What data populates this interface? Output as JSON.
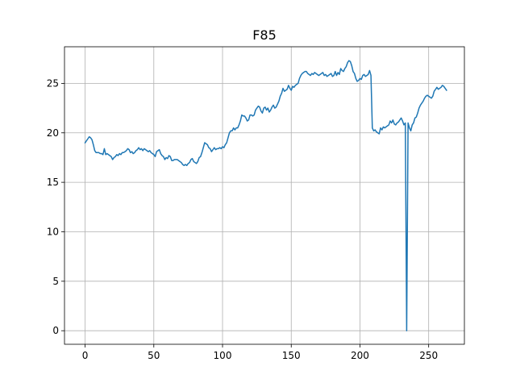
{
  "chart_data": {
    "type": "line",
    "title": "F85",
    "xlabel": "",
    "ylabel": "",
    "xlim": [
      -15,
      276
    ],
    "ylim": [
      -1.37,
      28.7
    ],
    "xticks": [
      0,
      50,
      100,
      150,
      200,
      250
    ],
    "yticks": [
      0,
      5,
      10,
      15,
      20,
      25
    ],
    "grid": true,
    "series": [
      {
        "color": "#1f77b4",
        "points": [
          [
            0,
            19.0
          ],
          [
            1,
            19.2
          ],
          [
            2,
            19.4
          ],
          [
            3,
            19.6
          ],
          [
            4,
            19.5
          ],
          [
            5,
            19.3
          ],
          [
            6,
            18.8
          ],
          [
            7,
            18.2
          ],
          [
            8,
            18.0
          ],
          [
            9,
            18.0
          ],
          [
            10,
            18.0
          ],
          [
            11,
            17.9
          ],
          [
            12,
            17.9
          ],
          [
            13,
            17.8
          ],
          [
            14,
            18.4
          ],
          [
            15,
            17.8
          ],
          [
            16,
            17.9
          ],
          [
            17,
            17.8
          ],
          [
            18,
            17.7
          ],
          [
            19,
            17.6
          ],
          [
            20,
            17.3
          ],
          [
            21,
            17.5
          ],
          [
            22,
            17.6
          ],
          [
            23,
            17.8
          ],
          [
            24,
            17.7
          ],
          [
            25,
            17.9
          ],
          [
            26,
            17.8
          ],
          [
            27,
            18.0
          ],
          [
            28,
            18.0
          ],
          [
            29,
            18.1
          ],
          [
            30,
            18.2
          ],
          [
            31,
            18.4
          ],
          [
            32,
            18.3
          ],
          [
            33,
            18.0
          ],
          [
            34,
            18.1
          ],
          [
            35,
            17.9
          ],
          [
            36,
            18.0
          ],
          [
            37,
            18.2
          ],
          [
            38,
            18.3
          ],
          [
            39,
            18.5
          ],
          [
            40,
            18.3
          ],
          [
            41,
            18.4
          ],
          [
            42,
            18.2
          ],
          [
            43,
            18.4
          ],
          [
            44,
            18.3
          ],
          [
            45,
            18.2
          ],
          [
            46,
            18.1
          ],
          [
            47,
            18.2
          ],
          [
            48,
            18.0
          ],
          [
            49,
            17.9
          ],
          [
            50,
            17.8
          ],
          [
            51,
            17.6
          ],
          [
            52,
            18.1
          ],
          [
            53,
            18.2
          ],
          [
            54,
            18.3
          ],
          [
            55,
            17.9
          ],
          [
            56,
            17.7
          ],
          [
            57,
            17.6
          ],
          [
            58,
            17.3
          ],
          [
            59,
            17.5
          ],
          [
            60,
            17.4
          ],
          [
            61,
            17.7
          ],
          [
            62,
            17.6
          ],
          [
            63,
            17.2
          ],
          [
            64,
            17.2
          ],
          [
            65,
            17.3
          ],
          [
            66,
            17.3
          ],
          [
            67,
            17.3
          ],
          [
            68,
            17.2
          ],
          [
            69,
            17.1
          ],
          [
            70,
            17.0
          ],
          [
            71,
            16.8
          ],
          [
            72,
            16.7
          ],
          [
            73,
            16.8
          ],
          [
            74,
            16.7
          ],
          [
            75,
            16.9
          ],
          [
            76,
            17.0
          ],
          [
            77,
            17.3
          ],
          [
            78,
            17.4
          ],
          [
            79,
            17.1
          ],
          [
            80,
            17.0
          ],
          [
            81,
            16.9
          ],
          [
            82,
            17.1
          ],
          [
            83,
            17.5
          ],
          [
            84,
            17.6
          ],
          [
            85,
            18.0
          ],
          [
            86,
            18.5
          ],
          [
            87,
            19.0
          ],
          [
            88,
            18.9
          ],
          [
            89,
            18.8
          ],
          [
            90,
            18.5
          ],
          [
            91,
            18.4
          ],
          [
            92,
            18.1
          ],
          [
            93,
            18.3
          ],
          [
            94,
            18.5
          ],
          [
            95,
            18.3
          ],
          [
            96,
            18.4
          ],
          [
            97,
            18.4
          ],
          [
            98,
            18.5
          ],
          [
            99,
            18.4
          ],
          [
            100,
            18.6
          ],
          [
            101,
            18.5
          ],
          [
            102,
            18.8
          ],
          [
            103,
            19.0
          ],
          [
            104,
            19.5
          ],
          [
            105,
            20.0
          ],
          [
            106,
            20.2
          ],
          [
            107,
            20.2
          ],
          [
            108,
            20.5
          ],
          [
            109,
            20.3
          ],
          [
            110,
            20.5
          ],
          [
            111,
            20.5
          ],
          [
            112,
            20.8
          ],
          [
            113,
            21.2
          ],
          [
            114,
            21.8
          ],
          [
            115,
            21.7
          ],
          [
            116,
            21.7
          ],
          [
            117,
            21.5
          ],
          [
            118,
            21.2
          ],
          [
            119,
            21.3
          ],
          [
            120,
            21.8
          ],
          [
            121,
            21.8
          ],
          [
            122,
            21.7
          ],
          [
            123,
            21.8
          ],
          [
            124,
            22.3
          ],
          [
            125,
            22.5
          ],
          [
            126,
            22.7
          ],
          [
            127,
            22.6
          ],
          [
            128,
            22.2
          ],
          [
            129,
            22.0
          ],
          [
            130,
            22.5
          ],
          [
            131,
            22.6
          ],
          [
            132,
            22.3
          ],
          [
            133,
            22.5
          ],
          [
            134,
            22.1
          ],
          [
            135,
            22.3
          ],
          [
            136,
            22.6
          ],
          [
            137,
            22.8
          ],
          [
            138,
            22.5
          ],
          [
            139,
            22.6
          ],
          [
            140,
            22.9
          ],
          [
            141,
            23.2
          ],
          [
            142,
            23.7
          ],
          [
            143,
            24.0
          ],
          [
            144,
            24.5
          ],
          [
            145,
            24.2
          ],
          [
            146,
            24.3
          ],
          [
            147,
            24.4
          ],
          [
            148,
            24.8
          ],
          [
            149,
            24.5
          ],
          [
            150,
            24.3
          ],
          [
            151,
            24.7
          ],
          [
            152,
            24.6
          ],
          [
            153,
            24.8
          ],
          [
            154,
            24.9
          ],
          [
            155,
            25.0
          ],
          [
            156,
            25.5
          ],
          [
            157,
            25.8
          ],
          [
            158,
            26.0
          ],
          [
            159,
            26.1
          ],
          [
            160,
            26.2
          ],
          [
            161,
            26.2
          ],
          [
            162,
            26.0
          ],
          [
            163,
            25.9
          ],
          [
            164,
            25.8
          ],
          [
            165,
            26.0
          ],
          [
            166,
            25.9
          ],
          [
            167,
            26.1
          ],
          [
            168,
            26.0
          ],
          [
            169,
            25.9
          ],
          [
            170,
            25.8
          ],
          [
            171,
            25.9
          ],
          [
            172,
            26.0
          ],
          [
            173,
            26.1
          ],
          [
            174,
            25.8
          ],
          [
            175,
            25.9
          ],
          [
            176,
            25.7
          ],
          [
            177,
            25.8
          ],
          [
            178,
            25.9
          ],
          [
            179,
            26.0
          ],
          [
            180,
            25.7
          ],
          [
            181,
            25.8
          ],
          [
            182,
            26.2
          ],
          [
            183,
            25.8
          ],
          [
            184,
            26.1
          ],
          [
            185,
            25.9
          ],
          [
            186,
            26.5
          ],
          [
            187,
            26.3
          ],
          [
            188,
            26.2
          ],
          [
            189,
            26.5
          ],
          [
            190,
            26.7
          ],
          [
            191,
            27.1
          ],
          [
            192,
            27.3
          ],
          [
            193,
            27.2
          ],
          [
            194,
            26.8
          ],
          [
            195,
            26.2
          ],
          [
            196,
            26.0
          ],
          [
            197,
            25.5
          ],
          [
            198,
            25.2
          ],
          [
            199,
            25.3
          ],
          [
            200,
            25.5
          ],
          [
            201,
            25.4
          ],
          [
            202,
            25.8
          ],
          [
            203,
            25.9
          ],
          [
            204,
            25.7
          ],
          [
            205,
            25.8
          ],
          [
            206,
            25.9
          ],
          [
            207,
            26.3
          ],
          [
            208,
            25.8
          ],
          [
            209,
            20.5
          ],
          [
            210,
            20.2
          ],
          [
            211,
            20.3
          ],
          [
            212,
            20.1
          ],
          [
            213,
            20.0
          ],
          [
            214,
            19.9
          ],
          [
            215,
            20.5
          ],
          [
            216,
            20.3
          ],
          [
            217,
            20.6
          ],
          [
            218,
            20.5
          ],
          [
            219,
            20.6
          ],
          [
            220,
            20.7
          ],
          [
            221,
            20.8
          ],
          [
            222,
            21.2
          ],
          [
            223,
            21.0
          ],
          [
            224,
            21.3
          ],
          [
            225,
            20.9
          ],
          [
            226,
            20.8
          ],
          [
            227,
            21.0
          ],
          [
            228,
            21.1
          ],
          [
            229,
            21.3
          ],
          [
            230,
            21.5
          ],
          [
            231,
            21.2
          ],
          [
            232,
            20.8
          ],
          [
            233,
            21.0
          ],
          [
            234,
            0.0
          ],
          [
            235,
            21.0
          ],
          [
            236,
            20.5
          ],
          [
            237,
            20.2
          ],
          [
            238,
            20.8
          ],
          [
            239,
            21.0
          ],
          [
            240,
            21.5
          ],
          [
            241,
            21.6
          ],
          [
            242,
            22.0
          ],
          [
            243,
            22.5
          ],
          [
            244,
            22.8
          ],
          [
            245,
            23.0
          ],
          [
            246,
            23.2
          ],
          [
            247,
            23.5
          ],
          [
            248,
            23.7
          ],
          [
            249,
            23.8
          ],
          [
            250,
            23.7
          ],
          [
            251,
            23.6
          ],
          [
            252,
            23.5
          ],
          [
            253,
            23.7
          ],
          [
            254,
            24.2
          ],
          [
            255,
            24.4
          ],
          [
            256,
            24.6
          ],
          [
            257,
            24.4
          ],
          [
            258,
            24.5
          ],
          [
            259,
            24.6
          ],
          [
            260,
            24.8
          ],
          [
            261,
            24.7
          ],
          [
            262,
            24.5
          ],
          [
            263,
            24.3
          ]
        ]
      }
    ]
  }
}
